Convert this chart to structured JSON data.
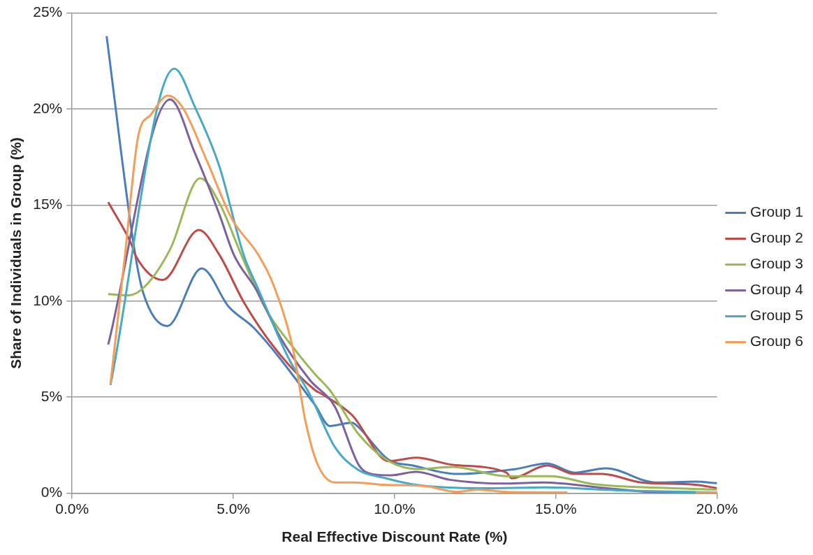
{
  "chart_data": {
    "type": "line",
    "xlabel": "Real Effective Discount Rate (%)",
    "ylabel": "Share of Individuals in Group (%)",
    "xlim": [
      0,
      20
    ],
    "xticks": [
      {
        "value": 0,
        "label": "0.0%"
      },
      {
        "value": 5,
        "label": "5.0%"
      },
      {
        "value": 10,
        "label": "10.0%"
      },
      {
        "value": 15,
        "label": "15.0%"
      },
      {
        "value": 20,
        "label": "20.0%"
      }
    ],
    "ylim": [
      0,
      25
    ],
    "yticks": [
      {
        "value": 0,
        "label": "0%"
      },
      {
        "value": 5,
        "label": "5%"
      },
      {
        "value": 10,
        "label": "10%"
      },
      {
        "value": 15,
        "label": "15%"
      },
      {
        "value": 20,
        "label": "20%"
      },
      {
        "value": 25,
        "label": "25%"
      }
    ],
    "grid": "y",
    "legend": "right",
    "marker": "none",
    "line_style": "solid",
    "series": [
      {
        "name": "Group 1",
        "color": "#4a7ebb",
        "x": [
          1.07,
          1.94,
          2.21,
          2.95,
          4.02,
          4.86,
          5.64,
          7.53,
          7.99,
          8.68,
          8.84,
          9.82,
          10.57,
          11.94,
          13.47,
          13.77,
          14.73,
          15.59,
          16.55,
          18.1,
          19.34,
          20
        ],
        "values": [
          23.8,
          12.6,
          10.4,
          8.7,
          11.7,
          9.7,
          8.6,
          4.6,
          3.5,
          3.67,
          3.5,
          1.74,
          1.44,
          1.0,
          1.2,
          1.26,
          1.55,
          1.07,
          1.3,
          0.56,
          0.6,
          0.52
        ]
      },
      {
        "name": "Group 2",
        "color": "#be4b48",
        "x": [
          1.12,
          1.83,
          1.99,
          2.81,
          3.93,
          4.57,
          5.32,
          6.32,
          7.53,
          7.76,
          8.68,
          9.82,
          10.66,
          11.8,
          13.47,
          13.63,
          14.73,
          15.59,
          16.44,
          17.65,
          19.34,
          20
        ],
        "values": [
          15.15,
          13.0,
          12.3,
          11.1,
          13.7,
          12.4,
          9.96,
          7.48,
          5.37,
          5.15,
          4.07,
          1.67,
          1.85,
          1.48,
          1.07,
          0.78,
          1.44,
          1.0,
          1.0,
          0.56,
          0.44,
          0.26
        ]
      },
      {
        "name": "Group 3",
        "color": "#98b954",
        "x": [
          1.12,
          1.76,
          2.28,
          3.04,
          3.97,
          4.57,
          5.25,
          6.0,
          6.85,
          7.53,
          7.99,
          8.9,
          9.82,
          10.73,
          11.8,
          13.47,
          14.84,
          16.14,
          18.65,
          20
        ],
        "values": [
          10.37,
          10.3,
          10.8,
          12.7,
          16.4,
          15.1,
          12.4,
          9.6,
          7.6,
          6.2,
          5.37,
          3.04,
          1.67,
          1.26,
          1.37,
          0.89,
          0.89,
          0.48,
          0.26,
          0.19
        ]
      },
      {
        "name": "Group 4",
        "color": "#7d60a0",
        "x": [
          1.12,
          3.04,
          3.81,
          4.57,
          5.02,
          5.71,
          6.46,
          7.37,
          8.15,
          8.9,
          9.29,
          9.89,
          10.66,
          11.71,
          13.47,
          14.61,
          16.6,
          18.26,
          20
        ],
        "values": [
          7.74,
          20.5,
          17.7,
          14.5,
          12.4,
          10.6,
          8.1,
          5.9,
          4.5,
          1.44,
          1.0,
          0.93,
          1.11,
          0.7,
          0.5,
          0.56,
          0.26,
          0.04,
          0.04
        ]
      },
      {
        "name": "Group 5",
        "color": "#46aac5",
        "x": [
          1.19,
          3.17,
          3.81,
          4.57,
          5.32,
          5.78,
          6.69,
          7.37,
          8.15,
          8.9,
          9.66,
          10.66,
          12.72,
          14.7,
          16.9,
          20
        ],
        "values": [
          5.63,
          22.1,
          20.1,
          17.0,
          12.4,
          10.6,
          7.1,
          5.15,
          2.4,
          1.19,
          0.81,
          0.44,
          0.26,
          0.3,
          0.15,
          0.04
        ]
      },
      {
        "name": "Group 6",
        "color": "#f59d56",
        "x": [
          1.19,
          1.64,
          2.05,
          2.44,
          2.97,
          3.42,
          4.18,
          4.95,
          5.78,
          6.23,
          6.85,
          7.23,
          7.6,
          8.15,
          8.75,
          9.66,
          10.96,
          11.94,
          12.56,
          13.47,
          15.36,
          17,
          19.34,
          20
        ],
        "values": [
          5.7,
          12.4,
          18.6,
          19.7,
          20.7,
          20.1,
          17.3,
          14.3,
          12.4,
          10.9,
          7.5,
          3.8,
          1.55,
          0.56,
          0.56,
          0.44,
          0.37,
          0.07,
          0.19,
          0.07,
          0.04,
          null,
          0.04,
          0.04
        ]
      }
    ]
  }
}
